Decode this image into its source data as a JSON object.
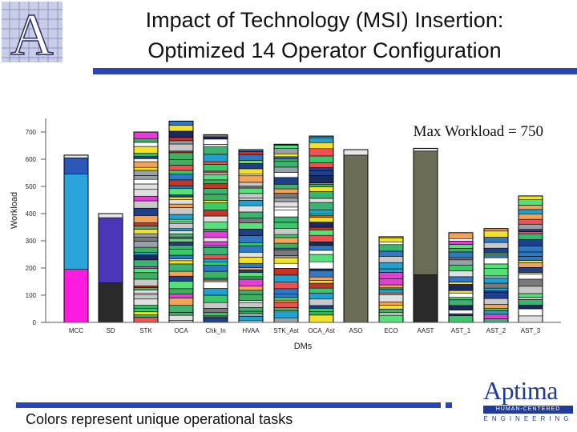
{
  "title_line1": "Impact of Technology (MSI) Insertion:",
  "title_line2": "Optimized 14 Operator Configuration",
  "logo_letter": "A",
  "footer_text": "Colors represent unique operational tasks",
  "brand": {
    "name": "Aptima",
    "tagline": "HUMAN-CENTERED",
    "sub": "ENGINEERING"
  },
  "colors": {
    "accent_bar": "#2a46b0",
    "brand": "#1f3c9c"
  },
  "chart_data": {
    "type": "bar",
    "stacked": true,
    "xlabel": "DMs",
    "ylabel": "Workload",
    "ylim": [
      0,
      750
    ],
    "yticks": [
      0,
      100,
      200,
      300,
      400,
      500,
      600,
      700
    ],
    "annotation": "Max Workload = 750",
    "categories": [
      "MCC",
      "SD",
      "STK",
      "OCA",
      "Chk_In",
      "HVAA",
      "STK_Ast",
      "OCA_Ast",
      "ASO",
      "ECO",
      "AAST",
      "AST_1",
      "AST_2",
      "AST_3"
    ],
    "totals": [
      615,
      400,
      700,
      740,
      690,
      635,
      655,
      685,
      635,
      315,
      640,
      330,
      345,
      465
    ],
    "note": "Each bar is a stack of many distinct task segments; colors represent unique operational tasks."
  }
}
